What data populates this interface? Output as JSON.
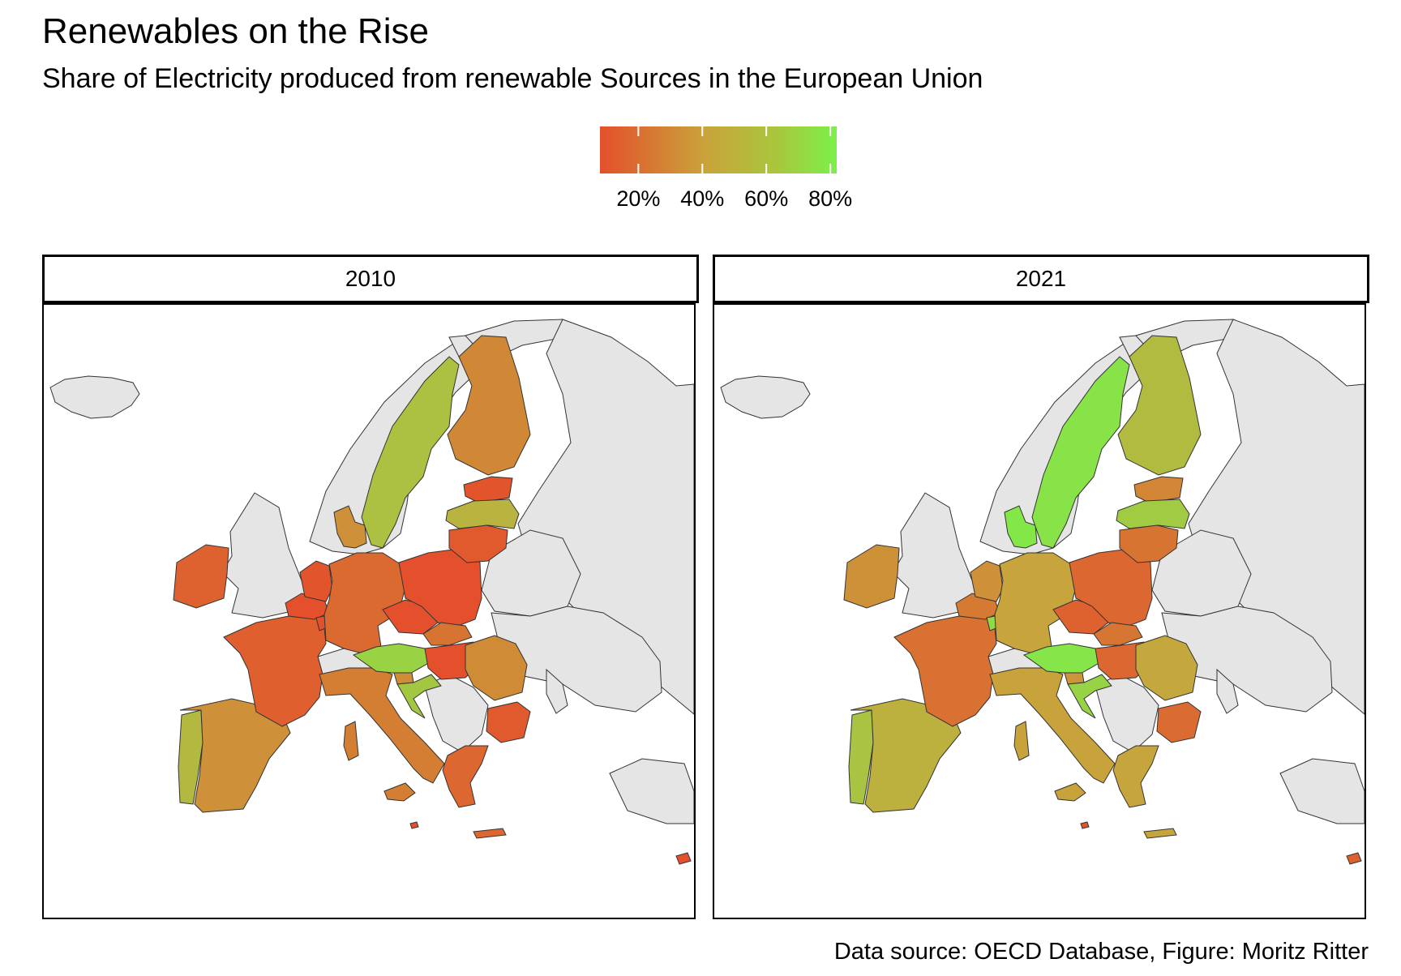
{
  "title": "Renewables on the Rise",
  "subtitle": "Share of Electricity produced from renewable Sources in the European Union",
  "caption": "Data source: OECD Database, Figure: Moritz Ritter",
  "colors": {
    "low": "#e4502b",
    "mid": "#c7a53c",
    "high": "#7bf04a",
    "no_data": "#e5e5e5",
    "border": "#333333"
  },
  "legend": {
    "ticks": [
      "20%",
      "40%",
      "60%",
      "80%"
    ],
    "domain": [
      8,
      82
    ]
  },
  "panels": [
    {
      "label": "2010",
      "shares": {
        "portugal": 52,
        "spain": 33,
        "france": 14,
        "ireland": 15,
        "belgium": 8,
        "netherlands": 10,
        "luxembourg": 8,
        "germany": 18,
        "denmark": 33,
        "italy": 26,
        "austria": 66,
        "czechia": 8,
        "poland": 7,
        "slovakia": 22,
        "hungary": 8,
        "slovenia": 32,
        "croatia": 60,
        "romania": 31,
        "bulgaria": 12,
        "greece": 17,
        "cyprus": 2,
        "malta": 1,
        "sweden": 56,
        "finland": 30,
        "estonia": 10,
        "latvia": 49,
        "lithuania": 12
      }
    },
    {
      "label": "2021",
      "shares": {
        "portugal": 58,
        "spain": 47,
        "france": 21,
        "ireland": 34,
        "belgium": 24,
        "netherlands": 33,
        "luxembourg": 70,
        "germany": 41,
        "denmark": 77,
        "italy": 40,
        "austria": 76,
        "czechia": 15,
        "poland": 17,
        "slovakia": 23,
        "hungary": 17,
        "slovenia": 35,
        "croatia": 67,
        "romania": 43,
        "bulgaria": 19,
        "greece": 42,
        "cyprus": 14,
        "malta": 10,
        "sweden": 75,
        "finland": 53,
        "estonia": 29,
        "latvia": 62,
        "lithuania": 22
      }
    }
  ]
}
